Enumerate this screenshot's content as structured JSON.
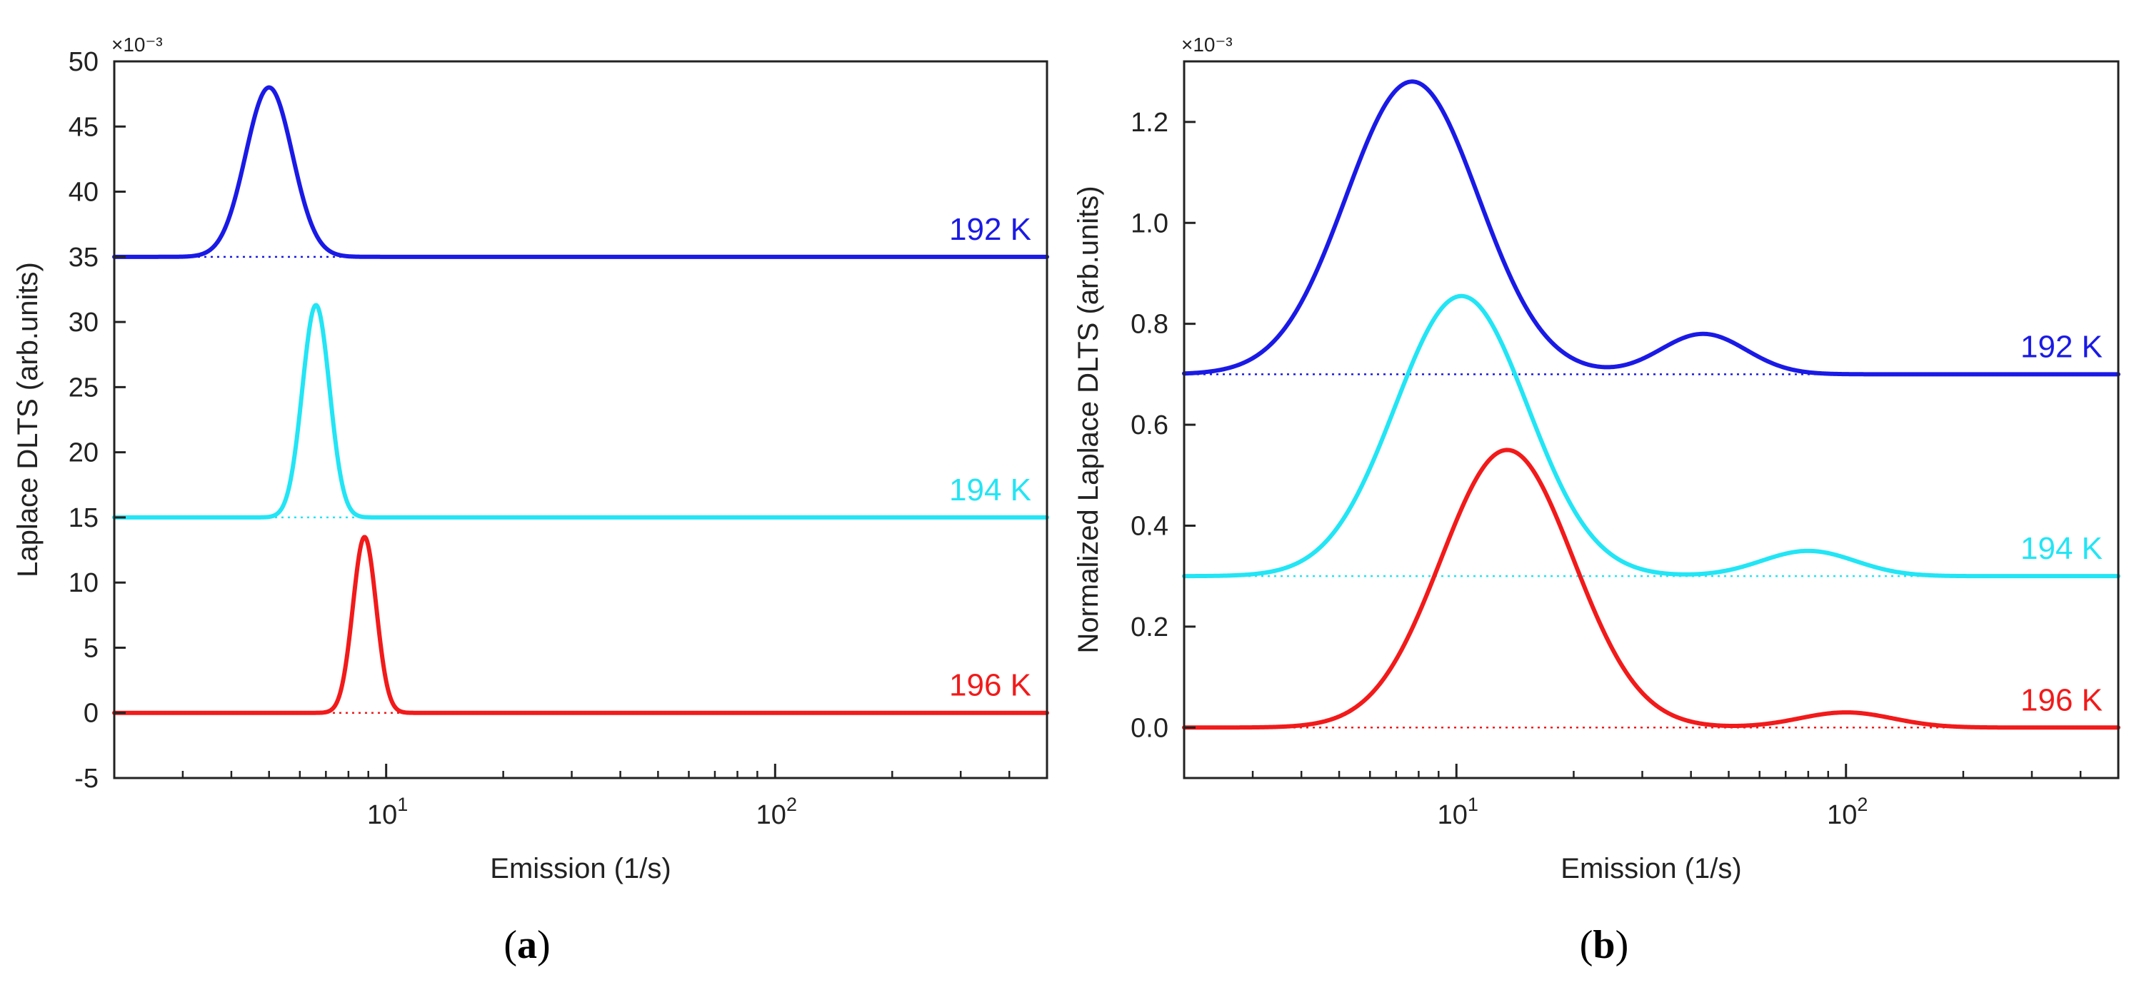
{
  "chart_data": [
    {
      "type": "line",
      "panel_label": "(a)",
      "panel_letter": "a",
      "xlabel": "Emission (1/s)",
      "ylabel": "Laplace DLTS (arb.units)",
      "y_multiplier": "×10⁻³",
      "xscale": "log",
      "xlim": [
        2,
        500
      ],
      "ylim": [
        -5,
        50
      ],
      "yticks": [
        -5,
        0,
        5,
        10,
        15,
        20,
        25,
        30,
        35,
        40,
        45,
        50
      ],
      "ytick_labels": [
        "-5",
        "0",
        "5",
        "10",
        "15",
        "20",
        "25",
        "30",
        "35",
        "40",
        "45",
        "50"
      ],
      "xticks_major": [
        {
          "value": 10,
          "base": "10",
          "exp": "1"
        },
        {
          "value": 100,
          "base": "10",
          "exp": "2"
        }
      ],
      "xticks_minor": [
        2,
        3,
        4,
        5,
        6,
        7,
        8,
        9,
        20,
        30,
        40,
        50,
        60,
        70,
        80,
        90,
        200,
        300,
        400,
        500
      ],
      "series": [
        {
          "name": "192 K",
          "color": "#1a1ae6",
          "baseline": 35,
          "peaks": [
            {
              "x": 5.0,
              "height": 13,
              "width_dec": 0.06
            }
          ]
        },
        {
          "name": "194 K",
          "color": "#22e5f5",
          "baseline": 15,
          "peaks": [
            {
              "x": 6.6,
              "height": 16.3,
              "width_dec": 0.035
            }
          ]
        },
        {
          "name": "196 K",
          "color": "#f21a1a",
          "baseline": 0,
          "peaks": [
            {
              "x": 8.8,
              "height": 13.5,
              "width_dec": 0.03
            }
          ]
        }
      ]
    },
    {
      "type": "line",
      "panel_label": "(b)",
      "panel_letter": "b",
      "xlabel": "Emission (1/s)",
      "ylabel": "Normalized Laplace DLTS (arb.units)",
      "y_multiplier": "×10⁻³",
      "xscale": "log",
      "xlim": [
        2,
        500
      ],
      "ylim": [
        -0.1,
        1.32
      ],
      "yticks": [
        0.0,
        0.2,
        0.4,
        0.6,
        0.8,
        1.0,
        1.2
      ],
      "ytick_labels": [
        "0.0",
        "0.2",
        "0.4",
        "0.6",
        "0.8",
        "1.0",
        "1.2"
      ],
      "xticks_major": [
        {
          "value": 10,
          "base": "10",
          "exp": "1"
        },
        {
          "value": 100,
          "base": "10",
          "exp": "2"
        }
      ],
      "xticks_minor": [
        2,
        3,
        4,
        5,
        6,
        7,
        8,
        9,
        20,
        30,
        40,
        50,
        60,
        70,
        80,
        90,
        200,
        300,
        400,
        500
      ],
      "series": [
        {
          "name": "192 K",
          "color": "#1a1ae6",
          "baseline": 0.7,
          "peaks": [
            {
              "x": 7.7,
              "height": 0.58,
              "width_dec": 0.17
            },
            {
              "x": 43,
              "height": 0.08,
              "width_dec": 0.11
            }
          ]
        },
        {
          "name": "194 K",
          "color": "#22e5f5",
          "baseline": 0.3,
          "peaks": [
            {
              "x": 10.3,
              "height": 0.555,
              "width_dec": 0.17
            },
            {
              "x": 80,
              "height": 0.05,
              "width_dec": 0.12
            }
          ]
        },
        {
          "name": "196 K",
          "color": "#f21a1a",
          "baseline": 0.0,
          "peaks": [
            {
              "x": 13.5,
              "height": 0.55,
              "width_dec": 0.17
            },
            {
              "x": 100,
              "height": 0.03,
              "width_dec": 0.12
            }
          ]
        }
      ]
    }
  ]
}
